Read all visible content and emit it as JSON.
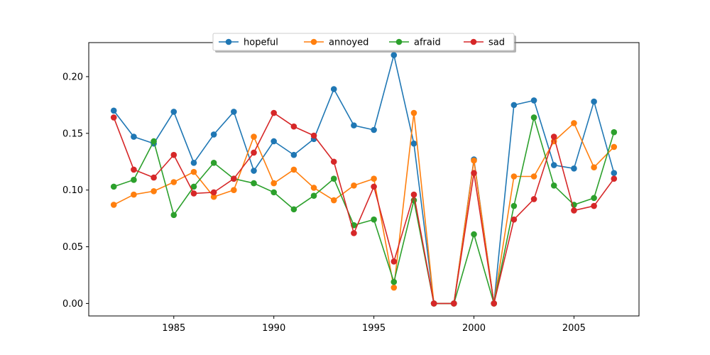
{
  "chart_data": {
    "type": "line",
    "x": [
      1982,
      1983,
      1984,
      1985,
      1986,
      1987,
      1988,
      1989,
      1990,
      1991,
      1992,
      1993,
      1994,
      1995,
      1996,
      1997,
      1998,
      1999,
      2000,
      2001,
      2002,
      2003,
      2004,
      2005,
      2006,
      2007
    ],
    "series": [
      {
        "name": "hopeful",
        "color": "#1f77b4",
        "values": [
          0.17,
          0.147,
          0.141,
          0.169,
          0.124,
          0.149,
          0.169,
          0.117,
          0.143,
          0.131,
          0.145,
          0.189,
          0.157,
          0.153,
          0.219,
          0.141,
          0.0,
          0.0,
          0.127,
          0.0,
          0.175,
          0.179,
          0.122,
          0.119,
          0.178,
          0.115
        ]
      },
      {
        "name": "annoyed",
        "color": "#ff7f0e",
        "values": [
          0.087,
          0.096,
          0.099,
          0.107,
          0.116,
          0.094,
          0.1,
          0.147,
          0.106,
          0.118,
          0.102,
          0.091,
          0.104,
          0.11,
          0.014,
          0.168,
          0.0,
          0.0,
          0.126,
          0.0,
          0.112,
          0.112,
          0.143,
          0.159,
          0.12,
          0.138
        ]
      },
      {
        "name": "afraid",
        "color": "#2ca02c",
        "values": [
          0.103,
          0.109,
          0.143,
          0.078,
          0.103,
          0.124,
          0.11,
          0.106,
          0.098,
          0.083,
          0.095,
          0.11,
          0.069,
          0.074,
          0.019,
          0.091,
          0.0,
          0.0,
          0.061,
          0.0,
          0.086,
          0.164,
          0.104,
          0.087,
          0.093,
          0.151
        ]
      },
      {
        "name": "sad",
        "color": "#d62728",
        "values": [
          0.164,
          0.118,
          0.111,
          0.131,
          0.097,
          0.098,
          0.11,
          0.133,
          0.168,
          0.156,
          0.148,
          0.125,
          0.062,
          0.103,
          0.037,
          0.096,
          0.0,
          0.0,
          0.115,
          0.0,
          0.074,
          0.092,
          0.147,
          0.082,
          0.086,
          0.11
        ]
      }
    ],
    "xticks": [
      1985,
      1990,
      1995,
      2000,
      2005
    ],
    "yticks": [
      0.0,
      0.05,
      0.1,
      0.15,
      0.2
    ],
    "xlim": [
      1980.75,
      2008.25
    ],
    "ylim": [
      -0.011,
      0.23
    ],
    "legend": "upper center, horizontal",
    "grid": false
  }
}
